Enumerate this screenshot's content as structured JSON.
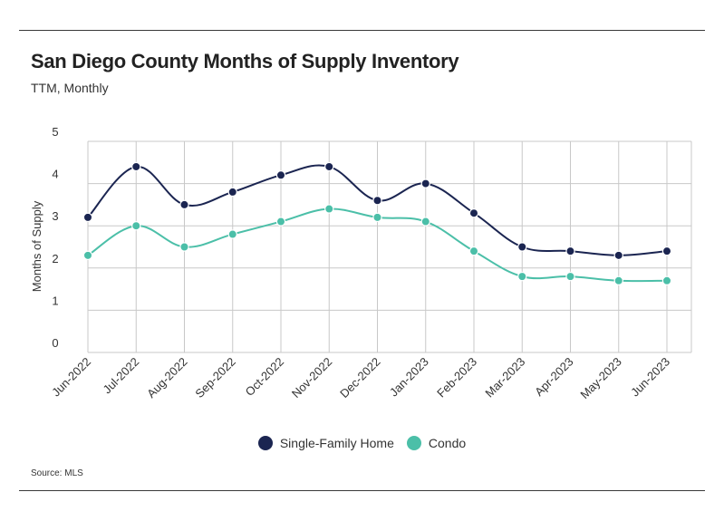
{
  "title": "San Diego County Months of Supply Inventory",
  "subtitle": "TTM, Monthly",
  "source": "Source:  MLS",
  "colors": {
    "single_family": "#1b2551",
    "condo": "#4bbfa8",
    "grid": "#c8c8c8"
  },
  "chart_data": {
    "type": "line",
    "title": "San Diego County Months of Supply Inventory",
    "subtitle": "TTM, Monthly",
    "xlabel": "",
    "ylabel": "Months of Supply",
    "ylim": [
      0,
      5
    ],
    "yticks": [
      "0",
      "1",
      "2",
      "3",
      "4",
      "5"
    ],
    "categories": [
      "Jun-2022",
      "Jul-2022",
      "Aug-2022",
      "Sep-2022",
      "Oct-2022",
      "Nov-2022",
      "Dec-2022",
      "Jan-2023",
      "Feb-2023",
      "Mar-2023",
      "Apr-2023",
      "May-2023",
      "Jun-2023"
    ],
    "grid": true,
    "legend_position": "bottom",
    "series": [
      {
        "name": "Single-Family Home",
        "color": "#1b2551",
        "values": [
          3.2,
          4.4,
          3.5,
          3.8,
          4.2,
          4.4,
          3.6,
          4.0,
          3.3,
          2.5,
          2.4,
          2.3,
          2.4
        ]
      },
      {
        "name": "Condo",
        "color": "#4bbfa8",
        "values": [
          2.3,
          3.0,
          2.5,
          2.8,
          3.1,
          3.4,
          3.2,
          3.1,
          2.4,
          1.8,
          1.8,
          1.7,
          1.7
        ]
      }
    ]
  }
}
